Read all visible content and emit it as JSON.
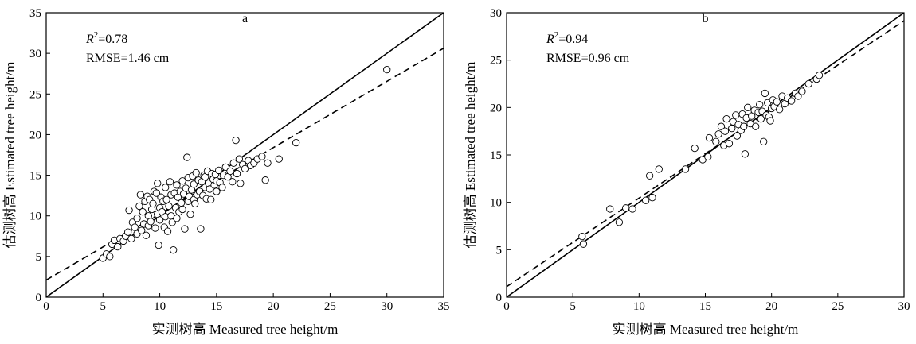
{
  "chart_data": [
    {
      "type": "scatter",
      "title": "a",
      "xlabel": "实测树高 Measured tree height/m",
      "ylabel": "估测树高 Estimated tree height/m",
      "xlim": [
        0,
        35
      ],
      "ylim": [
        0,
        35
      ],
      "xticks": [
        "0",
        "5",
        "10",
        "15",
        "20",
        "25",
        "30",
        "35"
      ],
      "yticks": [
        "0",
        "5",
        "10",
        "15",
        "20",
        "25",
        "30",
        "35"
      ],
      "r2_label": "R",
      "r2_sup": "2",
      "r2_value": "=0.78",
      "rmse": "RMSE=1.46 cm",
      "one_to_one_line": [
        [
          0,
          0
        ],
        [
          35,
          35
        ]
      ],
      "fit_line": {
        "slope": 0.815,
        "intercept": 2.1
      },
      "marker": "open-circle",
      "points": [
        [
          5,
          4.8
        ],
        [
          5.3,
          5.3
        ],
        [
          5.6,
          5.0
        ],
        [
          5.8,
          6.5
        ],
        [
          6.0,
          7.0
        ],
        [
          6.3,
          6.2
        ],
        [
          6.5,
          7.2
        ],
        [
          6.8,
          6.9
        ],
        [
          7.0,
          7.5
        ],
        [
          7.2,
          8.0
        ],
        [
          7.3,
          10.7
        ],
        [
          7.5,
          7.2
        ],
        [
          7.6,
          9.2
        ],
        [
          7.8,
          8.6
        ],
        [
          8.0,
          7.8
        ],
        [
          8.0,
          9.7
        ],
        [
          8.2,
          11.2
        ],
        [
          8.3,
          12.6
        ],
        [
          8.4,
          8.2
        ],
        [
          8.5,
          10.5
        ],
        [
          8.6,
          9.0
        ],
        [
          8.7,
          11.8
        ],
        [
          8.8,
          7.6
        ],
        [
          8.9,
          12.4
        ],
        [
          9.0,
          10.0
        ],
        [
          9.0,
          8.8
        ],
        [
          9.1,
          12.0
        ],
        [
          9.2,
          9.3
        ],
        [
          9.3,
          10.8
        ],
        [
          9.4,
          11.5
        ],
        [
          9.5,
          13.0
        ],
        [
          9.6,
          8.5
        ],
        [
          9.7,
          12.8
        ],
        [
          9.8,
          14.0
        ],
        [
          9.8,
          10.2
        ],
        [
          9.9,
          6.4
        ],
        [
          10.0,
          11.0
        ],
        [
          10.0,
          9.5
        ],
        [
          10.1,
          12.3
        ],
        [
          10.2,
          10.5
        ],
        [
          10.3,
          11.8
        ],
        [
          10.4,
          8.6
        ],
        [
          10.5,
          13.5
        ],
        [
          10.5,
          9.9
        ],
        [
          10.6,
          12.0
        ],
        [
          10.7,
          8.1
        ],
        [
          10.8,
          11.2
        ],
        [
          10.9,
          14.2
        ],
        [
          11.0,
          10.0
        ],
        [
          11.0,
          12.6
        ],
        [
          11.1,
          9.2
        ],
        [
          11.2,
          5.8
        ],
        [
          11.3,
          12.8
        ],
        [
          11.4,
          11.0
        ],
        [
          11.5,
          13.8
        ],
        [
          11.5,
          9.7
        ],
        [
          11.6,
          12.3
        ],
        [
          11.7,
          10.5
        ],
        [
          11.8,
          13.0
        ],
        [
          11.9,
          11.6
        ],
        [
          12.0,
          14.3
        ],
        [
          12.0,
          10.8
        ],
        [
          12.1,
          12.7
        ],
        [
          12.2,
          8.4
        ],
        [
          12.3,
          13.4
        ],
        [
          12.4,
          17.2
        ],
        [
          12.5,
          11.8
        ],
        [
          12.5,
          14.7
        ],
        [
          12.6,
          12.4
        ],
        [
          12.7,
          10.2
        ],
        [
          12.8,
          13.2
        ],
        [
          12.9,
          14.9
        ],
        [
          13.0,
          12.0
        ],
        [
          13.0,
          13.9
        ],
        [
          13.1,
          11.5
        ],
        [
          13.2,
          15.3
        ],
        [
          13.3,
          12.6
        ],
        [
          13.4,
          14.4
        ],
        [
          13.5,
          13.0
        ],
        [
          13.6,
          8.4
        ],
        [
          13.7,
          14.2
        ],
        [
          13.8,
          12.5
        ],
        [
          13.9,
          15.0
        ],
        [
          14.0,
          13.5
        ],
        [
          14.0,
          14.8
        ],
        [
          14.1,
          12.1
        ],
        [
          14.2,
          15.5
        ],
        [
          14.3,
          14.0
        ],
        [
          14.4,
          13.3
        ],
        [
          14.5,
          12.0
        ],
        [
          14.6,
          15.2
        ],
        [
          14.7,
          14.5
        ],
        [
          14.8,
          13.8
        ],
        [
          14.9,
          15.1
        ],
        [
          15.0,
          14.3
        ],
        [
          15.0,
          13.0
        ],
        [
          15.2,
          15.6
        ],
        [
          15.3,
          14.1
        ],
        [
          15.5,
          13.5
        ],
        [
          15.6,
          15.0
        ],
        [
          15.8,
          16.0
        ],
        [
          16.0,
          14.8
        ],
        [
          16.2,
          15.5
        ],
        [
          16.4,
          14.2
        ],
        [
          16.5,
          16.5
        ],
        [
          16.7,
          19.3
        ],
        [
          16.8,
          15.2
        ],
        [
          17.0,
          17.0
        ],
        [
          17.1,
          14.0
        ],
        [
          17.3,
          16.3
        ],
        [
          17.5,
          15.8
        ],
        [
          17.8,
          16.8
        ],
        [
          18.0,
          16.2
        ],
        [
          18.3,
          16.5
        ],
        [
          18.6,
          17.0
        ],
        [
          19.0,
          17.3
        ],
        [
          19.3,
          14.4
        ],
        [
          19.5,
          16.5
        ],
        [
          20.5,
          17.0
        ],
        [
          22.0,
          19.0
        ],
        [
          30.0,
          28.0
        ]
      ]
    },
    {
      "type": "scatter",
      "title": "b",
      "xlabel": "实测树高 Measured tree height/m",
      "ylabel": "估测树高 Estimated tree height/m",
      "xlim": [
        0,
        30
      ],
      "ylim": [
        0,
        30
      ],
      "xticks": [
        "0",
        "5",
        "10",
        "15",
        "20",
        "25",
        "30"
      ],
      "yticks": [
        "0",
        "5",
        "10",
        "15",
        "20",
        "25",
        "30"
      ],
      "r2_label": "R",
      "r2_sup": "2",
      "r2_value": "=0.94",
      "rmse": "RMSE=0.96 cm",
      "one_to_one_line": [
        [
          0,
          0
        ],
        [
          30,
          30
        ]
      ],
      "fit_line": {
        "slope": 0.935,
        "intercept": 1.1
      },
      "marker": "open-circle",
      "points": [
        [
          5.7,
          6.4
        ],
        [
          5.8,
          5.6
        ],
        [
          7.8,
          9.3
        ],
        [
          8.5,
          7.9
        ],
        [
          9.0,
          9.4
        ],
        [
          9.5,
          9.3
        ],
        [
          10.5,
          10.2
        ],
        [
          10.8,
          12.8
        ],
        [
          11.0,
          10.5
        ],
        [
          11.5,
          13.5
        ],
        [
          13.5,
          13.5
        ],
        [
          14.2,
          15.7
        ],
        [
          14.8,
          14.5
        ],
        [
          15.2,
          14.8
        ],
        [
          15.3,
          16.8
        ],
        [
          15.8,
          16.4
        ],
        [
          16.0,
          17.2
        ],
        [
          16.2,
          18.0
        ],
        [
          16.4,
          16.0
        ],
        [
          16.5,
          17.5
        ],
        [
          16.6,
          18.8
        ],
        [
          16.8,
          16.2
        ],
        [
          17.0,
          17.8
        ],
        [
          17.1,
          18.5
        ],
        [
          17.3,
          19.2
        ],
        [
          17.4,
          17.0
        ],
        [
          17.5,
          18.2
        ],
        [
          17.7,
          17.6
        ],
        [
          17.8,
          19.3
        ],
        [
          17.9,
          18.0
        ],
        [
          18.0,
          15.1
        ],
        [
          18.1,
          18.9
        ],
        [
          18.2,
          20.0
        ],
        [
          18.4,
          18.3
        ],
        [
          18.5,
          19.1
        ],
        [
          18.7,
          19.7
        ],
        [
          18.8,
          18.0
        ],
        [
          19.0,
          19.5
        ],
        [
          19.1,
          20.3
        ],
        [
          19.2,
          18.8
        ],
        [
          19.3,
          19.6
        ],
        [
          19.4,
          16.4
        ],
        [
          19.5,
          21.5
        ],
        [
          19.6,
          19.2
        ],
        [
          19.7,
          20.5
        ],
        [
          19.8,
          19.0
        ],
        [
          19.9,
          18.6
        ],
        [
          20.0,
          19.9
        ],
        [
          20.1,
          20.8
        ],
        [
          20.2,
          20.1
        ],
        [
          20.4,
          20.6
        ],
        [
          20.6,
          19.8
        ],
        [
          20.8,
          21.2
        ],
        [
          21.0,
          20.4
        ],
        [
          21.2,
          21.0
        ],
        [
          21.5,
          20.7
        ],
        [
          21.8,
          21.5
        ],
        [
          22.0,
          21.2
        ],
        [
          22.3,
          21.7
        ],
        [
          22.8,
          22.5
        ],
        [
          23.4,
          23.0
        ],
        [
          23.6,
          23.4
        ]
      ]
    }
  ]
}
